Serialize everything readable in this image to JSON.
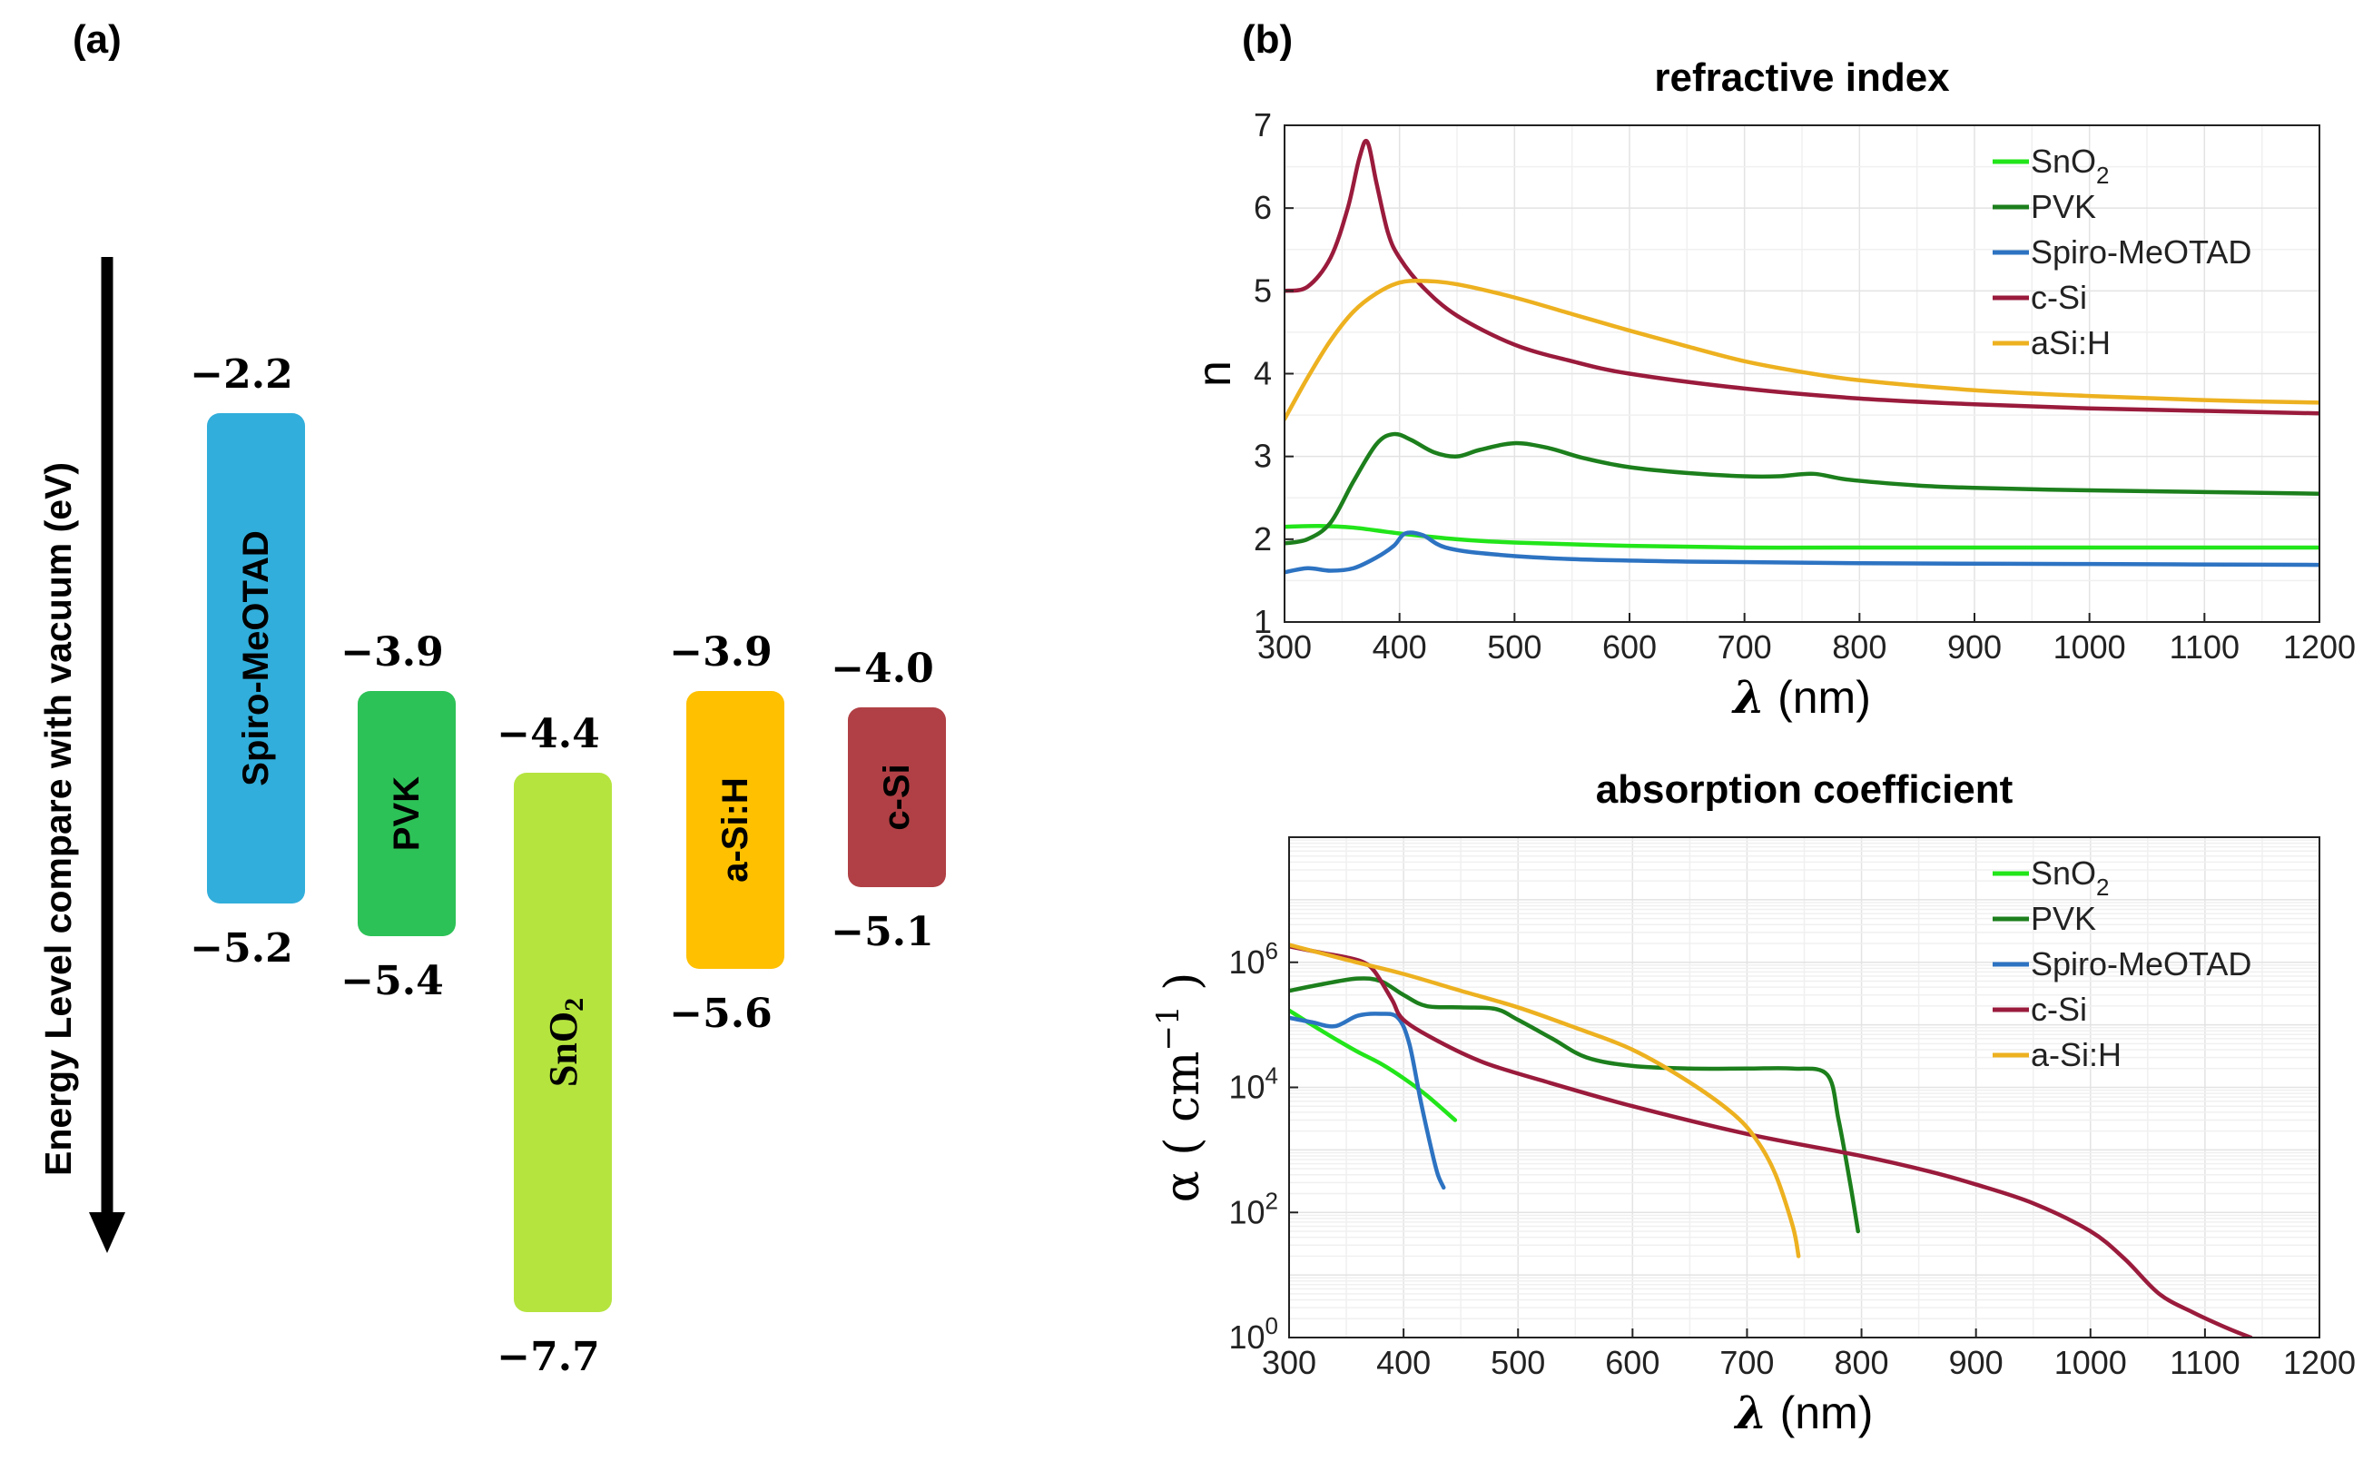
{
  "panel_a": {
    "label": "(a)",
    "y_axis_label": "Energy Level compare with vacuum (eV)",
    "bands": [
      {
        "name": "Spiro-MeOTAD",
        "sub": "",
        "top": -2.2,
        "bottom": -5.2,
        "top_text": "−2.2",
        "bottom_text": "−5.2",
        "color": "#31AEDB",
        "serif": false
      },
      {
        "name": "PVK",
        "sub": "",
        "top": -3.9,
        "bottom": -5.4,
        "top_text": "−3.9",
        "bottom_text": "−5.4",
        "color": "#2DC257",
        "serif": false
      },
      {
        "name": "SnO",
        "sub": "2",
        "top": -4.4,
        "bottom": -7.7,
        "top_text": "−4.4",
        "bottom_text": "−7.7",
        "color": "#B5E43F",
        "serif": true
      },
      {
        "name": "a-Si:H",
        "sub": "",
        "top": -3.9,
        "bottom": -5.6,
        "top_text": "−3.9",
        "bottom_text": "−5.6",
        "color": "#FFC000",
        "serif": false
      },
      {
        "name": "c-Si",
        "sub": "",
        "top": -4.0,
        "bottom": -5.1,
        "top_text": "−4.0",
        "bottom_text": "−5.1",
        "color": "#B04045",
        "serif": false
      }
    ]
  },
  "panel_b": {
    "label": "(b)"
  },
  "chart_data": [
    {
      "type": "line",
      "title": "refractive index",
      "xlabel_symbol": "λ",
      "xlabel_unit": "(nm)",
      "ylabel": "n",
      "xlim": [
        300,
        1200
      ],
      "ylim": [
        1,
        7
      ],
      "xticks": [
        300,
        400,
        500,
        600,
        700,
        800,
        900,
        1000,
        1100,
        1200
      ],
      "yticks": [
        1,
        2,
        3,
        4,
        5,
        6,
        7
      ],
      "grid": true,
      "legend_position": "top-right",
      "series": [
        {
          "name": "SnO",
          "sub": "2",
          "color": "#22E51A",
          "x": [
            300,
            330,
            360,
            400,
            450,
            500,
            600,
            700,
            800,
            1000,
            1200
          ],
          "y": [
            2.15,
            2.16,
            2.14,
            2.07,
            2.0,
            1.96,
            1.92,
            1.9,
            1.9,
            1.9,
            1.9
          ]
        },
        {
          "name": "PVK",
          "sub": "",
          "color": "#1C7F1C",
          "x": [
            300,
            320,
            340,
            360,
            380,
            395,
            410,
            430,
            450,
            470,
            500,
            530,
            560,
            600,
            650,
            700,
            730,
            760,
            790,
            850,
            900,
            1000,
            1100,
            1200
          ],
          "y": [
            1.95,
            2.0,
            2.2,
            2.7,
            3.15,
            3.27,
            3.2,
            3.05,
            3.0,
            3.08,
            3.16,
            3.1,
            2.98,
            2.87,
            2.8,
            2.76,
            2.76,
            2.79,
            2.72,
            2.65,
            2.62,
            2.59,
            2.57,
            2.55
          ]
        },
        {
          "name": "Spiro-MeOTAD",
          "sub": "",
          "color": "#2D73C2",
          "x": [
            300,
            320,
            340,
            360,
            380,
            395,
            405,
            420,
            440,
            480,
            550,
            650,
            800,
            1000,
            1200
          ],
          "y": [
            1.6,
            1.65,
            1.62,
            1.65,
            1.78,
            1.92,
            2.07,
            2.05,
            1.9,
            1.82,
            1.76,
            1.73,
            1.71,
            1.7,
            1.69
          ]
        },
        {
          "name": "c-Si",
          "sub": "",
          "color": "#9A1B3C",
          "x": [
            300,
            320,
            340,
            355,
            365,
            372,
            380,
            390,
            400,
            420,
            450,
            500,
            550,
            600,
            700,
            800,
            900,
            1000,
            1100,
            1200
          ],
          "y": [
            5.0,
            5.05,
            5.4,
            6.0,
            6.6,
            6.8,
            6.3,
            5.7,
            5.4,
            5.05,
            4.7,
            4.35,
            4.15,
            4.0,
            3.82,
            3.7,
            3.63,
            3.58,
            3.55,
            3.52
          ]
        },
        {
          "name": "aSi:H",
          "sub": "",
          "color": "#EDB120",
          "x": [
            300,
            320,
            340,
            360,
            380,
            400,
            420,
            450,
            500,
            550,
            600,
            650,
            700,
            750,
            800,
            900,
            1000,
            1100,
            1200
          ],
          "y": [
            3.45,
            3.95,
            4.4,
            4.75,
            4.97,
            5.1,
            5.12,
            5.08,
            4.92,
            4.72,
            4.52,
            4.33,
            4.15,
            4.02,
            3.92,
            3.8,
            3.73,
            3.68,
            3.65
          ]
        }
      ]
    },
    {
      "type": "line",
      "title": "absorption coefficient",
      "xlabel_symbol": "λ",
      "xlabel_unit": "(nm)",
      "ylabel_main": "α",
      "ylabel_unit": "cm",
      "ylabel_exp": "−1",
      "yscale": "log",
      "xlim": [
        300,
        1200
      ],
      "ylim": [
        1,
        100000000
      ],
      "xticks": [
        300,
        400,
        500,
        600,
        700,
        800,
        900,
        1000,
        1100,
        1200
      ],
      "yticks": [
        {
          "value": 1,
          "base": "10",
          "exp": "0"
        },
        {
          "value": 100,
          "base": "10",
          "exp": "2"
        },
        {
          "value": 10000,
          "base": "10",
          "exp": "4"
        },
        {
          "value": 1000000,
          "base": "10",
          "exp": "6"
        }
      ],
      "grid": true,
      "legend_position": "top-right",
      "series": [
        {
          "name": "SnO",
          "sub": "2",
          "color": "#22E51A",
          "x": [
            300,
            320,
            340,
            360,
            380,
            400,
            420,
            445
          ],
          "y": [
            170000,
            100000,
            60000,
            37000,
            24000,
            14000,
            7500,
            3000
          ]
        },
        {
          "name": "PVK",
          "sub": "",
          "color": "#1C7F1C",
          "x": [
            300,
            330,
            360,
            380,
            400,
            420,
            450,
            480,
            500,
            530,
            560,
            600,
            650,
            700,
            740,
            770,
            780,
            790,
            797
          ],
          "y": [
            350000,
            450000,
            550000,
            500000,
            300000,
            200000,
            190000,
            180000,
            120000,
            60000,
            30000,
            22000,
            20000,
            20000,
            20000,
            16000,
            3000,
            300,
            50
          ]
        },
        {
          "name": "Spiro-MeOTAD",
          "sub": "",
          "color": "#2D73C2",
          "x": [
            300,
            320,
            340,
            360,
            380,
            395,
            405,
            415,
            425,
            430,
            435
          ],
          "y": [
            130000,
            110000,
            95000,
            140000,
            150000,
            130000,
            50000,
            6000,
            900,
            400,
            250
          ]
        },
        {
          "name": "c-Si",
          "sub": "",
          "color": "#9A1B3C",
          "x": [
            300,
            330,
            350,
            365,
            375,
            390,
            400,
            430,
            470,
            520,
            600,
            700,
            800,
            860,
            900,
            950,
            1000,
            1030,
            1060,
            1090,
            1120,
            1140
          ],
          "y": [
            1800000,
            1400000,
            1200000,
            1000000,
            700000,
            250000,
            120000,
            55000,
            25000,
            13000,
            5000,
            1800,
            800,
            450,
            280,
            140,
            50,
            18,
            5,
            2.5,
            1.4,
            1
          ]
        },
        {
          "name": "a-Si:H",
          "sub": "",
          "color": "#EDB120",
          "x": [
            300,
            350,
            400,
            450,
            500,
            550,
            600,
            650,
            690,
            710,
            725,
            740,
            745
          ],
          "y": [
            1900000,
            1100000,
            650000,
            350000,
            190000,
            90000,
            40000,
            12000,
            3500,
            1300,
            400,
            60,
            20
          ]
        }
      ]
    }
  ]
}
